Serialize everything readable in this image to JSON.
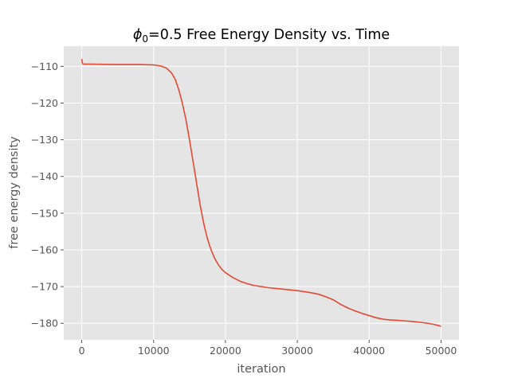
{
  "chart_data": {
    "type": "line",
    "title_main": "=0.5 Free Energy Density vs. Time",
    "title_symbol": "ϕ",
    "title_subscript": "0",
    "xlabel": "iteration",
    "ylabel": "free energy density",
    "xlim": [
      -2500,
      52500
    ],
    "ylim": [
      -184.5,
      -104.5
    ],
    "x_ticks": [
      0,
      10000,
      20000,
      30000,
      40000,
      50000
    ],
    "y_ticks": [
      -110,
      -120,
      -130,
      -140,
      -150,
      -160,
      -170,
      -180
    ],
    "x_tick_labels": [
      "0",
      "10000",
      "20000",
      "30000",
      "40000",
      "50000"
    ],
    "y_tick_labels": [
      "−110",
      "−120",
      "−130",
      "−140",
      "−150",
      "−160",
      "−170",
      "−180"
    ],
    "grid": true,
    "line_color": "#E24A33",
    "background_color": "#E5E5E5",
    "series": [
      {
        "x": [
          0,
          50,
          100,
          200,
          500,
          1000,
          5000,
          8000,
          10000,
          11000,
          11800,
          12500,
          13000,
          13500,
          14000,
          14500,
          15000,
          15500,
          16000,
          16500,
          17000,
          17500,
          18000,
          18500,
          19000,
          19500,
          20000,
          21000,
          22000,
          23000,
          24000,
          25000,
          26000,
          27000,
          28000,
          29000,
          30000,
          31000,
          32000,
          33000,
          34000,
          35000,
          36000,
          37000,
          38000,
          39000,
          40000,
          41000,
          42000,
          43000,
          44000,
          45000,
          46000,
          47000,
          48000,
          49000,
          50000
        ],
        "y": [
          -108.0,
          -108.5,
          -109.2,
          -109.4,
          -109.4,
          -109.4,
          -109.5,
          -109.5,
          -109.6,
          -109.9,
          -110.5,
          -111.8,
          -113.5,
          -116.3,
          -120.0,
          -124.5,
          -130.0,
          -136.0,
          -142.0,
          -148.0,
          -153.0,
          -157.0,
          -160.0,
          -162.3,
          -164.0,
          -165.3,
          -166.2,
          -167.5,
          -168.5,
          -169.2,
          -169.7,
          -170.0,
          -170.3,
          -170.5,
          -170.7,
          -170.9,
          -171.1,
          -171.4,
          -171.7,
          -172.1,
          -172.8,
          -173.6,
          -174.8,
          -175.8,
          -176.6,
          -177.3,
          -177.9,
          -178.5,
          -178.9,
          -179.1,
          -179.2,
          -179.35,
          -179.5,
          -179.7,
          -179.95,
          -180.3,
          -180.8
        ]
      }
    ]
  }
}
